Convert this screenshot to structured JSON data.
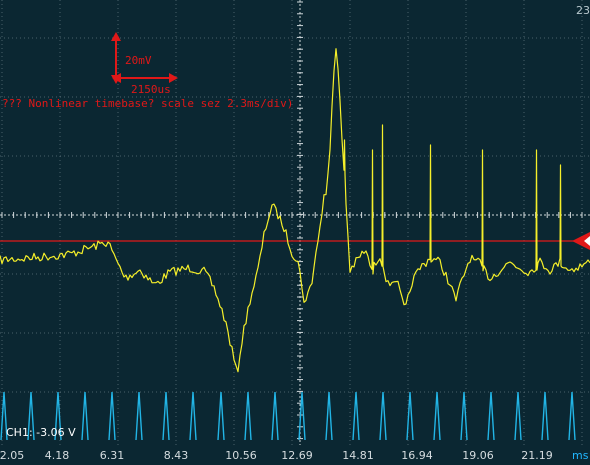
{
  "scope": {
    "corner_label": "23",
    "channel_label": "CH1: -3.06 V",
    "annotation_voltage": "20mV",
    "annotation_time": "2150us",
    "annotation_note": "??? Nonlinear timebase? scale sez 2.3ms/div)",
    "x_unit": "ms",
    "x_ticks": [
      "2.05",
      "4.18",
      "6.31",
      "8.43",
      "10.56",
      "12.69",
      "14.81",
      "16.94",
      "19.06",
      "21.19"
    ],
    "colors": {
      "background": "#0b2732",
      "signal": "#f5ef2a",
      "trigger": "#e01818",
      "timing_pulses": "#22b5e6",
      "grid": "#7f929a"
    }
  }
}
